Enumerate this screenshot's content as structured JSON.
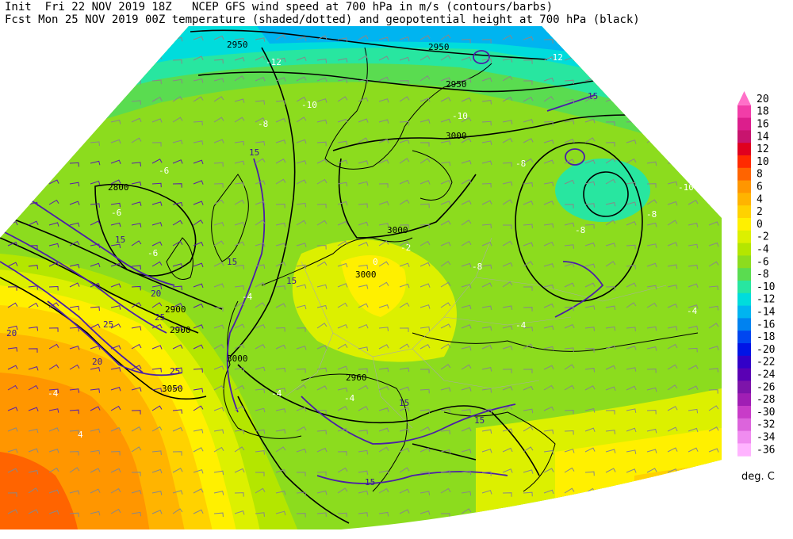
{
  "header": {
    "line1": "Init  Fri 22 NOV 2019 18Z   NCEP GFS wind speed at 700 hPa in m/s (contours/barbs)",
    "line2": "Fcst Mon 25 NOV 2019 00Z temperature (shaded/dotted) and geopotential height at 700 hPa (black)"
  },
  "legend": {
    "unit": "deg. C",
    "levels": [
      {
        "label": "20",
        "color": "#ff70c8"
      },
      {
        "label": "18",
        "color": "#f23da8"
      },
      {
        "label": "16",
        "color": "#dc1e8c"
      },
      {
        "label": "14",
        "color": "#c8146e"
      },
      {
        "label": "12",
        "color": "#e0001e"
      },
      {
        "label": "10",
        "color": "#ff2a00"
      },
      {
        "label": "8",
        "color": "#ff6400"
      },
      {
        "label": "6",
        "color": "#ff9600"
      },
      {
        "label": "4",
        "color": "#ffb400"
      },
      {
        "label": "2",
        "color": "#ffd200"
      },
      {
        "label": "0",
        "color": "#fff000"
      },
      {
        "label": "-2",
        "color": "#dcf000"
      },
      {
        "label": "-4",
        "color": "#b4e600"
      },
      {
        "label": "-6",
        "color": "#8cdc1e"
      },
      {
        "label": "-8",
        "color": "#5adc50"
      },
      {
        "label": "-10",
        "color": "#28e6a0"
      },
      {
        "label": "-12",
        "color": "#00dcdc"
      },
      {
        "label": "-14",
        "color": "#00b4f0"
      },
      {
        "label": "-16",
        "color": "#0082f0"
      },
      {
        "label": "-18",
        "color": "#0046f0"
      },
      {
        "label": "-20",
        "color": "#0014e6"
      },
      {
        "label": "-22",
        "color": "#3200c8"
      },
      {
        "label": "-24",
        "color": "#5a00b4"
      },
      {
        "label": "-26",
        "color": "#7d14aa"
      },
      {
        "label": "-28",
        "color": "#a01eb4"
      },
      {
        "label": "-30",
        "color": "#c83cc8"
      },
      {
        "label": "-32",
        "color": "#dc64dc"
      },
      {
        "label": "-34",
        "color": "#f08cf0"
      },
      {
        "label": "-36",
        "color": "#ffb4ff"
      }
    ]
  },
  "map": {
    "height_contour_labels": [
      "2950",
      "2950",
      "2950",
      "3000",
      "3000",
      "3000",
      "2900",
      "2900",
      "3050",
      "2800",
      "2960",
      "3000"
    ],
    "wind_contour_labels": [
      "15",
      "15",
      "15",
      "15",
      "15",
      "20",
      "20",
      "20",
      "25",
      "25",
      "25",
      "15",
      "15",
      "15",
      "15"
    ],
    "temperature_labels": [
      "-12",
      "-12",
      "-10",
      "-8",
      "-8",
      "-8",
      "-8",
      "-6",
      "-6",
      "-4",
      "-4",
      "-4",
      "-2",
      "0",
      "-4",
      "-6",
      "-8",
      "-10",
      "-10",
      "4",
      "-4",
      "-4"
    ]
  }
}
